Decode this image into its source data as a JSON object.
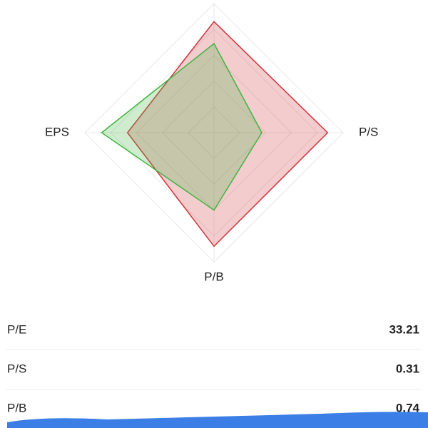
{
  "chart_data": {
    "type": "radar",
    "categories": [
      null,
      "P/S",
      "P/B",
      "EPS"
    ],
    "rlim": [
      0,
      100
    ],
    "rticks": [
      20,
      40,
      60,
      80,
      100
    ],
    "grid": true,
    "series": [
      {
        "color": "#d0343a",
        "values": [
          86,
          88,
          88,
          67
        ]
      },
      {
        "color": "#3fb53f",
        "values": [
          69,
          37,
          60,
          87
        ]
      }
    ]
  },
  "table": {
    "rows": [
      [
        "P/E",
        "33.21"
      ],
      [
        "P/S",
        "0.31"
      ],
      [
        "P/B",
        "0.74"
      ]
    ]
  }
}
